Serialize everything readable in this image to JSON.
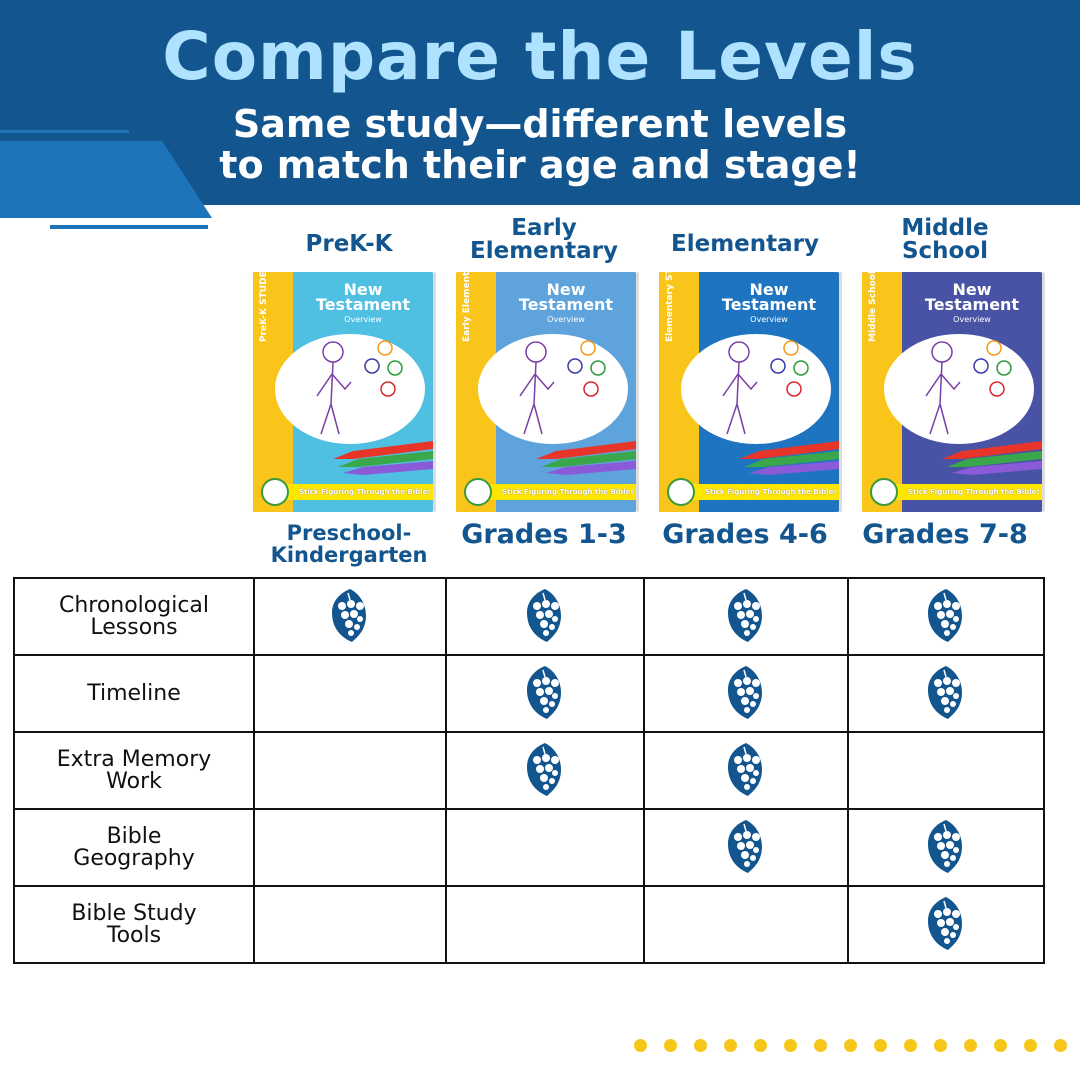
{
  "header": {
    "title": "Compare the Levels",
    "subtitle_line1": "Same study—different levels",
    "subtitle_line2": "to match their age and stage!"
  },
  "colors": {
    "header_bg": "#13568f",
    "accent": "#1e74b8",
    "title": "#aee2fe",
    "check": "#13568f",
    "dots": "#f6c619"
  },
  "levels": [
    {
      "name": "PreK-K",
      "grades": "Preschool-Kindergarten",
      "cover": {
        "label": "PreK-K STUDENT",
        "title1": "New",
        "title2": "Testament",
        "subtitle": "Overview",
        "tagline": "Stick Figuring Through the Bible!",
        "color": "#4fc0e2"
      }
    },
    {
      "name": "Early Elementary",
      "grades": "Grades 1-3",
      "cover": {
        "label": "Early Elementary STUDENT",
        "title1": "New",
        "title2": "Testament",
        "subtitle": "Overview",
        "tagline": "Stick Figuring Through the Bible!",
        "color": "#5ea3dc"
      }
    },
    {
      "name": "Elementary",
      "grades": "Grades 4-6",
      "cover": {
        "label": "Elementary STUDENT",
        "title1": "New",
        "title2": "Testament",
        "subtitle": "Overview",
        "tagline": "Stick Figuring Through the Bible!",
        "color": "#1f74c2"
      }
    },
    {
      "name": "Middle School",
      "grades": "Grades 7-8",
      "cover": {
        "label": "Middle School STUDENT",
        "title1": "New",
        "title2": "Testament",
        "subtitle": "Overview",
        "tagline": "Stick Figuring Through the Bible!",
        "color": "#4953a6"
      }
    }
  ],
  "features": [
    {
      "label": "Chronological Lessons",
      "checks": [
        true,
        true,
        true,
        true
      ]
    },
    {
      "label": "Timeline",
      "checks": [
        false,
        true,
        true,
        true
      ]
    },
    {
      "label": "Extra Memory Work",
      "checks": [
        false,
        true,
        true,
        false
      ]
    },
    {
      "label": "Bible Geography",
      "checks": [
        false,
        false,
        true,
        true
      ]
    },
    {
      "label": "Bible Study Tools",
      "checks": [
        false,
        false,
        false,
        true
      ]
    }
  ],
  "check_icon": "grape-leaf-icon"
}
